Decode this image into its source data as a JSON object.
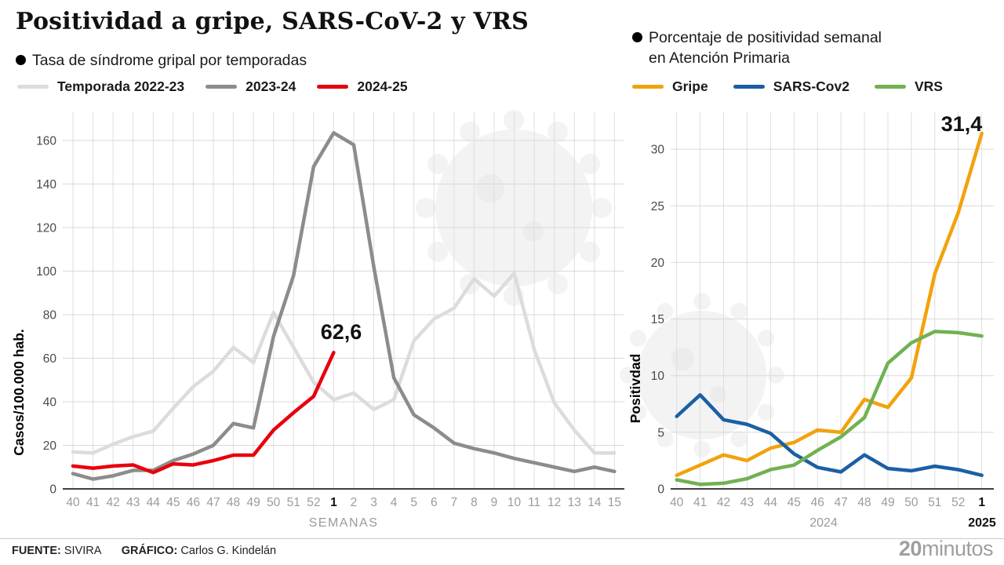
{
  "title": "Positividad a gripe, SARS-CoV-2 y VRS",
  "footer": {
    "source_label": "FUENTE:",
    "source": "SIVIRA",
    "credit_label": "GRÁFICO:",
    "credit": "Carlos G. Kindelán",
    "logo_bold": "20",
    "logo_rest": "minutos"
  },
  "chart_data": [
    {
      "type": "line",
      "title": "Tasa de síndrome gripal por temporadas",
      "xlabel": "SEMANAS",
      "ylabel": "Casos/100.000 hab.",
      "categories": [
        "40",
        "41",
        "42",
        "43",
        "44",
        "45",
        "46",
        "47",
        "48",
        "49",
        "50",
        "51",
        "52",
        "1",
        "2",
        "3",
        "4",
        "5",
        "6",
        "7",
        "8",
        "9",
        "10",
        "11",
        "12",
        "13",
        "14",
        "15"
      ],
      "emphasized_category": "1",
      "ylim": [
        0,
        170
      ],
      "yticks": [
        0,
        20,
        40,
        60,
        80,
        100,
        120,
        140,
        160
      ],
      "grid": true,
      "legend_position": "top",
      "annotation": {
        "text": "62,6",
        "series": "2024-25",
        "category": "1"
      },
      "series": [
        {
          "name": "Temporada 2022-23",
          "color": "#DCDCDC",
          "values": [
            17,
            16.5,
            20.5,
            24,
            26.5,
            37,
            47,
            54,
            65,
            58,
            81,
            65,
            49,
            41,
            44,
            36.5,
            41,
            68,
            78,
            83,
            96.5,
            88.5,
            99,
            64,
            39.5,
            27,
            16.5,
            16.5
          ]
        },
        {
          "name": "2023-24",
          "color": "#8C8C8C",
          "values": [
            7,
            4.5,
            6,
            8.5,
            8.5,
            13,
            16,
            20,
            30,
            28,
            70,
            98,
            148,
            163.5,
            158,
            102,
            51,
            34,
            28,
            21,
            18.5,
            16.5,
            14,
            12,
            10,
            8,
            10,
            8
          ]
        },
        {
          "name": "2024-25",
          "color": "#E8000D",
          "values": [
            10.5,
            9.5,
            10.5,
            11,
            7.5,
            11.5,
            11,
            13,
            15.5,
            15.5,
            27,
            35,
            42.5,
            62.6
          ]
        }
      ]
    },
    {
      "type": "line",
      "title": "Porcentaje de positividad semanal en Atención Primaria",
      "title_line1": "Porcentaje de positividad semanal",
      "title_line2": "en Atención Primaria",
      "xlabel": "",
      "ylabel": "Positivdad",
      "categories": [
        "40",
        "41",
        "42",
        "43",
        "44",
        "45",
        "46",
        "47",
        "48",
        "49",
        "50",
        "51",
        "52",
        "1"
      ],
      "emphasized_category": "1",
      "x_axis_notes": [
        {
          "text": "2024",
          "position": "center",
          "bold": false
        },
        {
          "text": "2025",
          "position": "end",
          "bold": true
        }
      ],
      "ylim": [
        0,
        33
      ],
      "yticks": [
        0,
        5,
        10,
        15,
        20,
        25,
        30
      ],
      "grid": true,
      "legend_position": "top",
      "annotation": {
        "text": "31,4",
        "series": "Gripe",
        "category": "1"
      },
      "series": [
        {
          "name": "Gripe",
          "color": "#F2A20D",
          "values": [
            1.2,
            2.1,
            3.0,
            2.5,
            3.6,
            4.1,
            5.2,
            5.0,
            7.9,
            7.2,
            9.8,
            19,
            24.4,
            31.4
          ]
        },
        {
          "name": "SARS-Cov2",
          "color": "#1B5FA5",
          "values": [
            6.4,
            8.3,
            6.1,
            5.7,
            4.9,
            3.1,
            1.9,
            1.5,
            3.0,
            1.8,
            1.6,
            2.0,
            1.7,
            1.2
          ]
        },
        {
          "name": "VRS",
          "color": "#72B152",
          "values": [
            0.8,
            0.4,
            0.5,
            0.9,
            1.7,
            2.1,
            3.4,
            4.6,
            6.3,
            11.1,
            12.9,
            13.9,
            13.8,
            13.5
          ]
        }
      ]
    }
  ]
}
